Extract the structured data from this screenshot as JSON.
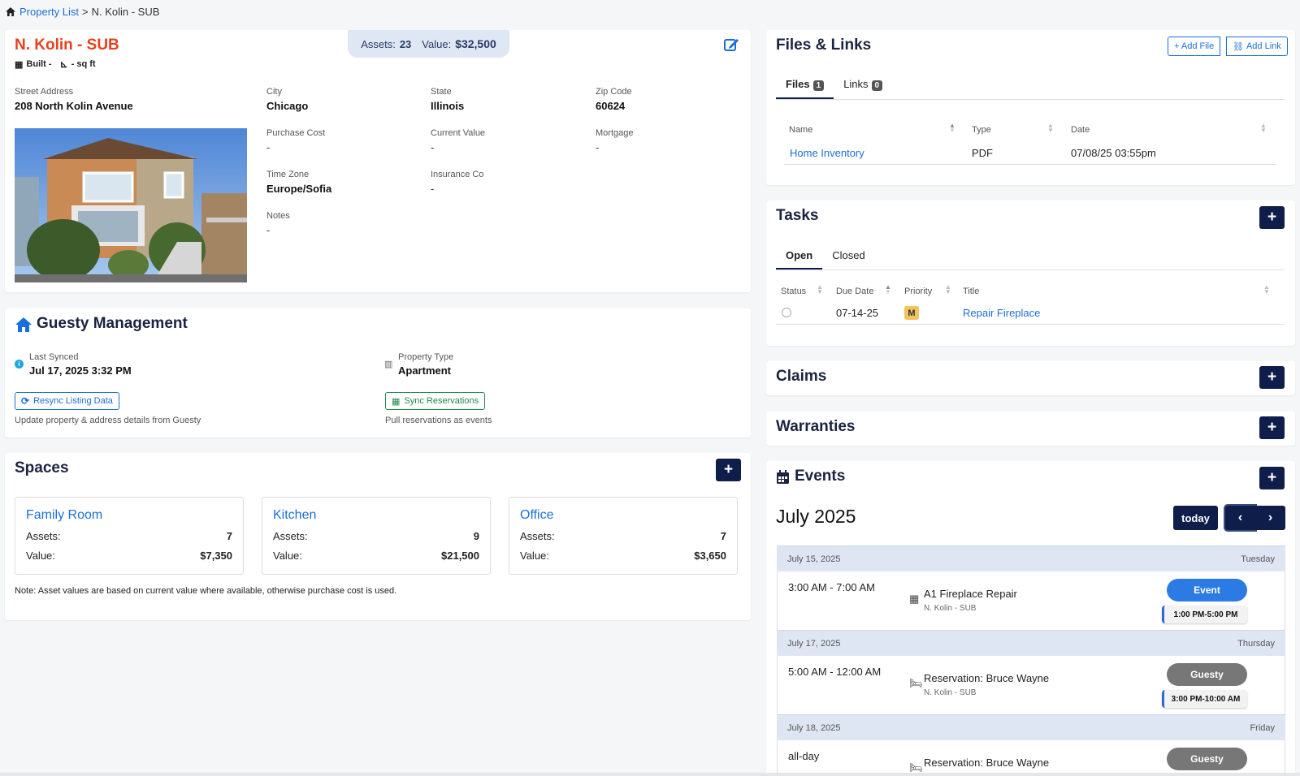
{
  "breadcrumb": {
    "root": "Property List",
    "sep": ">",
    "current": "N. Kolin - SUB"
  },
  "property": {
    "name": "N. Kolin - SUB",
    "built": "Built -",
    "sqft": "- sq ft",
    "assets_label": "Assets:",
    "assets_value": "23",
    "value_label": "Value:",
    "value_value": "$32,500",
    "fields": {
      "street_label": "Street Address",
      "street": "208 North Kolin Avenue",
      "city_label": "City",
      "city": "Chicago",
      "state_label": "State",
      "state": "Illinois",
      "zip_label": "Zip Code",
      "zip": "60624",
      "purchase_label": "Purchase Cost",
      "purchase": "-",
      "current_label": "Current Value",
      "current": "-",
      "mortgage_label": "Mortgage",
      "mortgage": "-",
      "tz_label": "Time Zone",
      "tz": "Europe/Sofia",
      "ins_label": "Insurance Co",
      "ins": "-",
      "notes_label": "Notes",
      "notes": "-"
    }
  },
  "guesty": {
    "title": "Guesty Management",
    "synced_label": "Last Synced",
    "synced": "Jul 17, 2025 3:32 PM",
    "type_label": "Property Type",
    "type": "Apartment",
    "resync": "Resync Listing Data",
    "resync_desc": "Update property & address details from Guesty",
    "sync": "Sync Reservations",
    "sync_desc": "Pull reservations as events"
  },
  "spaces": {
    "title": "Spaces",
    "assets_label": "Assets:",
    "value_label": "Value:",
    "items": [
      {
        "name": "Family Room",
        "assets": "7",
        "value": "$7,350"
      },
      {
        "name": "Kitchen",
        "assets": "9",
        "value": "$21,500"
      },
      {
        "name": "Office",
        "assets": "7",
        "value": "$3,650"
      }
    ],
    "note": "Note: Asset values are based on current value where available, otherwise purchase cost is used."
  },
  "files": {
    "title": "Files & Links",
    "add_file": "+ Add File",
    "add_link": "Add Link",
    "tab_files": "Files",
    "files_count": "1",
    "tab_links": "Links",
    "links_count": "0",
    "col_name": "Name",
    "col_type": "Type",
    "col_date": "Date",
    "rows": [
      {
        "name": "Home Inventory",
        "type": "PDF",
        "date": "07/08/25 03:55pm"
      }
    ]
  },
  "tasks": {
    "title": "Tasks",
    "tab_open": "Open",
    "tab_closed": "Closed",
    "col_status": "Status",
    "col_due": "Due Date",
    "col_priority": "Priority",
    "col_title": "Title",
    "rows": [
      {
        "due": "07-14-25",
        "priority": "M",
        "title": "Repair Fireplace"
      }
    ]
  },
  "claims": {
    "title": "Claims"
  },
  "warranties": {
    "title": "Warranties"
  },
  "events": {
    "title": "Events",
    "month": "July 2025",
    "today": "today",
    "days": [
      {
        "date": "July 15, 2025",
        "weekday": "Tuesday",
        "time": "3:00 AM - 7:00 AM",
        "title": "A1 Fireplace Repair",
        "sub": "N. Kolin - SUB",
        "badge": "Event",
        "range": "1:00 PM-5:00 PM"
      },
      {
        "date": "July 17, 2025",
        "weekday": "Thursday",
        "time": "5:00 AM - 12:00 AM",
        "title": "Reservation: Bruce Wayne",
        "sub": "N. Kolin - SUB",
        "badge": "Guesty",
        "range": "3:00 PM-10:00 AM"
      },
      {
        "date": "July 18, 2025",
        "weekday": "Friday",
        "time": "all-day",
        "title": "Reservation: Bruce Wayne",
        "badge": "Guesty"
      }
    ]
  },
  "colors": {
    "accent_red": "#e8401c",
    "navy": "#0f1d4a",
    "link_blue": "#1a6fd8",
    "event_blue": "#2c7be5",
    "guesty_gray": "#777777",
    "priority_amber": "#f3c35d"
  }
}
